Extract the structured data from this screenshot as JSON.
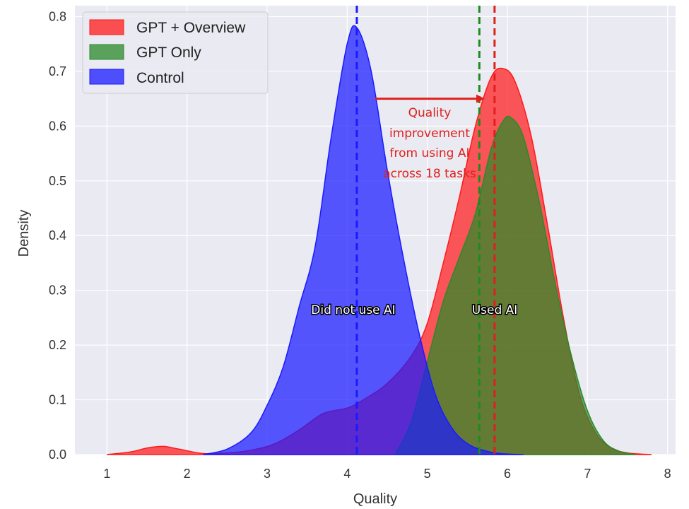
{
  "chart_data": {
    "type": "area",
    "xlabel": "Quality",
    "ylabel": "Density",
    "xlim": [
      0.6,
      8.1
    ],
    "ylim": [
      0,
      0.82
    ],
    "xticks": [
      "1",
      "2",
      "3",
      "4",
      "5",
      "6",
      "7",
      "8"
    ],
    "yticks": [
      "0.0",
      "0.1",
      "0.2",
      "0.3",
      "0.4",
      "0.5",
      "0.6",
      "0.7",
      "0.8"
    ],
    "grid": true,
    "legend_position": "top-left",
    "series": [
      {
        "name": "GPT + Overview",
        "color": "#ff1a1a",
        "mean_line": 5.84,
        "x": [
          1.0,
          1.3,
          1.5,
          1.7,
          1.9,
          2.2,
          2.5,
          2.8,
          3.1,
          3.4,
          3.7,
          4.0,
          4.2,
          4.5,
          4.8,
          5.0,
          5.2,
          5.4,
          5.6,
          5.8,
          5.95,
          6.1,
          6.3,
          6.5,
          6.7,
          6.9,
          7.1,
          7.3,
          7.5,
          7.8
        ],
        "y": [
          0.0,
          0.005,
          0.012,
          0.015,
          0.01,
          0.002,
          0.003,
          0.008,
          0.02,
          0.045,
          0.075,
          0.085,
          0.1,
          0.13,
          0.18,
          0.24,
          0.35,
          0.47,
          0.6,
          0.69,
          0.705,
          0.68,
          0.58,
          0.42,
          0.25,
          0.11,
          0.04,
          0.012,
          0.003,
          0.0
        ]
      },
      {
        "name": "GPT Only",
        "color": "#2a8a2a",
        "mean_line": 5.65,
        "x": [
          4.6,
          4.8,
          5.0,
          5.2,
          5.4,
          5.6,
          5.8,
          5.95,
          6.05,
          6.2,
          6.4,
          6.6,
          6.8,
          7.0,
          7.2,
          7.4,
          7.6
        ],
        "y": [
          0.0,
          0.06,
          0.17,
          0.28,
          0.36,
          0.44,
          0.56,
          0.61,
          0.615,
          0.58,
          0.46,
          0.31,
          0.18,
          0.08,
          0.025,
          0.006,
          0.0
        ]
      },
      {
        "name": "Control",
        "color": "#1a1aff",
        "mean_line": 4.12,
        "x": [
          2.2,
          2.5,
          2.8,
          3.0,
          3.2,
          3.4,
          3.6,
          3.8,
          4.0,
          4.12,
          4.3,
          4.5,
          4.7,
          4.9,
          5.1,
          5.3,
          5.5,
          5.7,
          5.9,
          6.2
        ],
        "y": [
          0.0,
          0.01,
          0.04,
          0.09,
          0.16,
          0.27,
          0.38,
          0.58,
          0.75,
          0.78,
          0.7,
          0.52,
          0.36,
          0.22,
          0.11,
          0.05,
          0.02,
          0.008,
          0.002,
          0.0
        ]
      }
    ],
    "annotations": {
      "improvement_lines": [
        "Quality",
        "improvement",
        "from using AI",
        "across 18 tasks"
      ],
      "improvement_arrow_from": 4.35,
      "improvement_arrow_to": 5.7,
      "improvement_arrow_y": 0.65,
      "did_not_use_ai": "Did not use AI",
      "used_ai": "Used AI"
    }
  }
}
